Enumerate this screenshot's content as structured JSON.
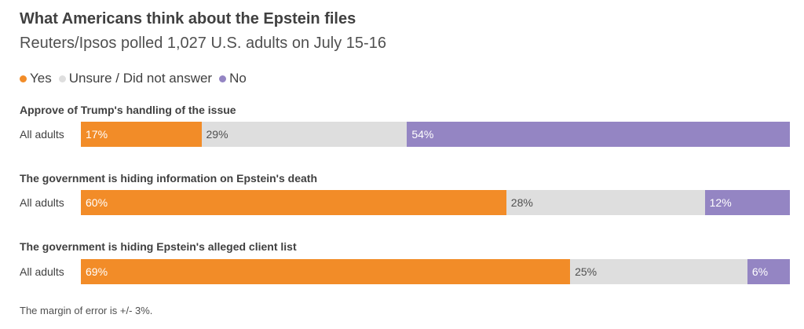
{
  "title": "What Americans think about the Epstein files",
  "subtitle": "Reuters/Ipsos polled 1,027 U.S. adults on July 15-16",
  "legend": [
    {
      "label": "Yes",
      "color": "#f28c28"
    },
    {
      "label": "Unsure / Did not answer",
      "color": "#dedede"
    },
    {
      "label": "No",
      "color": "#9485c3"
    }
  ],
  "footnote": "The margin of error is +/- 3%.",
  "chart_data": {
    "type": "bar",
    "stacked": true,
    "orientation": "horizontal",
    "units": "%",
    "xlim": [
      0,
      100
    ],
    "colors": {
      "Yes": "#f28c28",
      "Unsure / Did not answer": "#dedede",
      "No": "#9485c3"
    },
    "questions": [
      {
        "title": "Approve of Trump's handling of the issue",
        "row_label": "All adults",
        "values": {
          "Yes": 17,
          "Unsure / Did not answer": 29,
          "No": 54
        },
        "labels": {
          "Yes": "17%",
          "Unsure / Did not answer": "29%",
          "No": "54%"
        }
      },
      {
        "title": "The government is hiding information on Epstein's death",
        "row_label": "All adults",
        "values": {
          "Yes": 60,
          "Unsure / Did not answer": 28,
          "No": 12
        },
        "labels": {
          "Yes": "60%",
          "Unsure / Did not answer": "28%",
          "No": "12%"
        }
      },
      {
        "title": "The government is hiding Epstein's alleged client list",
        "row_label": "All adults",
        "values": {
          "Yes": 69,
          "Unsure / Did not answer": 25,
          "No": 6
        },
        "labels": {
          "Yes": "69%",
          "Unsure / Did not answer": "25%",
          "No": "6%"
        }
      }
    ]
  }
}
